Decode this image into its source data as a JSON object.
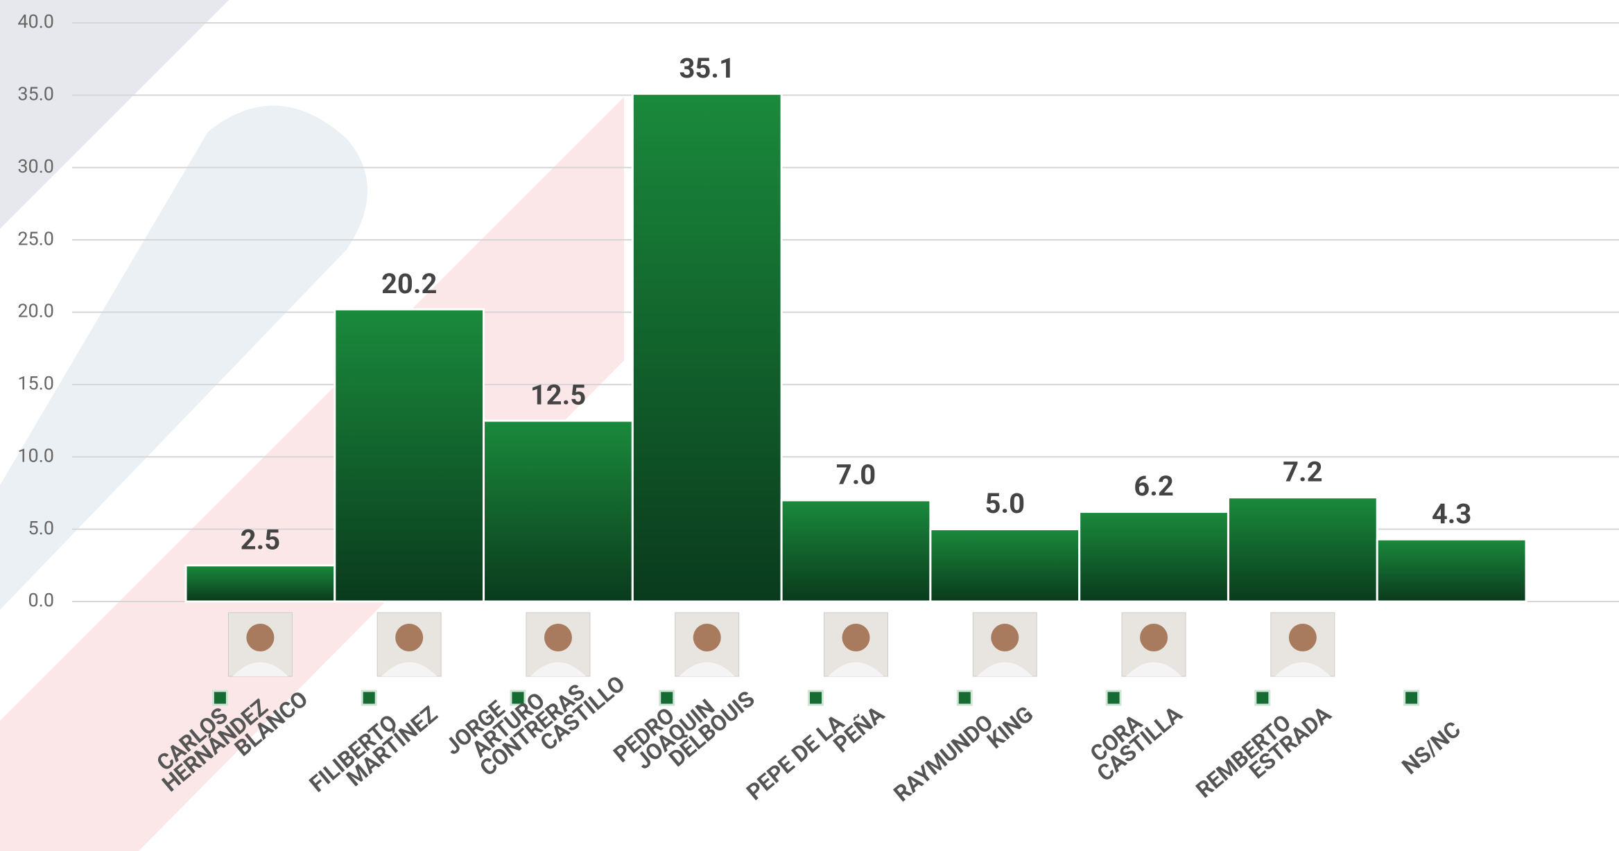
{
  "chart_data": {
    "type": "bar",
    "categories": [
      "CARLOS HERNÁNDEZ BLANCO",
      "FILIBERTO MARTÍNEZ",
      "JORGE ARTURO CONTRERAS CASTILLO",
      "PEDRO JOAQUIN DELBOUIS",
      "PEPE DE LA PEÑA",
      "RAYMUNDO KING",
      "CORA CASTILLA",
      "REMBERTO ESTRADA",
      "NS/NC"
    ],
    "values": [
      2.5,
      20.2,
      12.5,
      35.1,
      7,
      5,
      6.2,
      7.2,
      4.3
    ],
    "value_labels": [
      "2.5",
      "20.2",
      "12.5",
      "35.1",
      "7.0",
      "5.0",
      "6.2",
      "7.2",
      "4.3"
    ],
    "color": "#17803a",
    "ylim": [
      0,
      40
    ],
    "yticks": [
      {
        "value": 0,
        "label": "0.0"
      },
      {
        "value": 5,
        "label": "5.0"
      },
      {
        "value": 10,
        "label": "10.0"
      },
      {
        "value": 15,
        "label": "15.0"
      },
      {
        "value": 20,
        "label": "20.0"
      },
      {
        "value": 25,
        "label": "25.0"
      },
      {
        "value": 30,
        "label": "30.0"
      },
      {
        "value": 35,
        "label": "35.0"
      },
      {
        "value": 40,
        "label": "40.0"
      }
    ],
    "grid": true
  }
}
